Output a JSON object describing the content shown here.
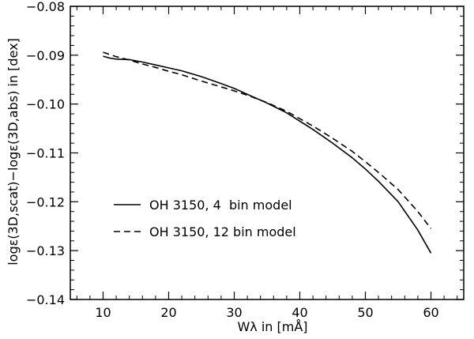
{
  "chart_data": {
    "type": "line",
    "title": "",
    "xlabel": "Wλ in [mÅ]",
    "ylabel": "logε(3D,scat)−logε(3D,abs) in [dex]",
    "xlim": [
      5,
      65
    ],
    "ylim": [
      -0.14,
      -0.08
    ],
    "x_ticks": [
      10,
      20,
      30,
      40,
      50,
      60
    ],
    "x_tick_labels": [
      "10",
      "20",
      "30",
      "40",
      "50",
      "60"
    ],
    "y_ticks": [
      -0.14,
      -0.13,
      -0.12,
      -0.11,
      -0.1,
      -0.09,
      -0.08
    ],
    "y_tick_labels": [
      "−0.14",
      "−0.13",
      "−0.12",
      "−0.11",
      "−0.10",
      "−0.09",
      "−0.08"
    ],
    "grid": false,
    "legend_position": "lower-left",
    "series": [
      {
        "name": "OH 3150, 4  bin model",
        "style": "solid",
        "color": "#000000",
        "x": [
          10,
          11,
          12,
          14,
          16,
          18,
          20,
          22,
          25,
          28,
          30,
          32,
          35,
          38,
          40,
          42,
          45,
          48,
          50,
          52,
          55,
          58,
          60
        ],
        "y": [
          -0.0902,
          -0.0906,
          -0.0908,
          -0.0909,
          -0.0914,
          -0.092,
          -0.0926,
          -0.0932,
          -0.0944,
          -0.0958,
          -0.0968,
          -0.098,
          -0.0998,
          -0.1018,
          -0.1035,
          -0.1052,
          -0.108,
          -0.111,
          -0.1133,
          -0.1158,
          -0.12,
          -0.1258,
          -0.1305
        ]
      },
      {
        "name": "OH 3150, 12 bin model",
        "style": "dashed",
        "color": "#000000",
        "x": [
          10,
          12,
          14,
          16,
          18,
          20,
          22,
          25,
          28,
          30,
          32,
          35,
          38,
          40,
          42,
          45,
          48,
          50,
          52,
          55,
          58,
          60
        ],
        "y": [
          -0.0894,
          -0.0903,
          -0.091,
          -0.0918,
          -0.0925,
          -0.0933,
          -0.094,
          -0.0953,
          -0.0965,
          -0.0973,
          -0.0982,
          -0.0997,
          -0.1015,
          -0.103,
          -0.1045,
          -0.107,
          -0.1097,
          -0.1118,
          -0.114,
          -0.1175,
          -0.122,
          -0.1255
        ]
      }
    ]
  }
}
